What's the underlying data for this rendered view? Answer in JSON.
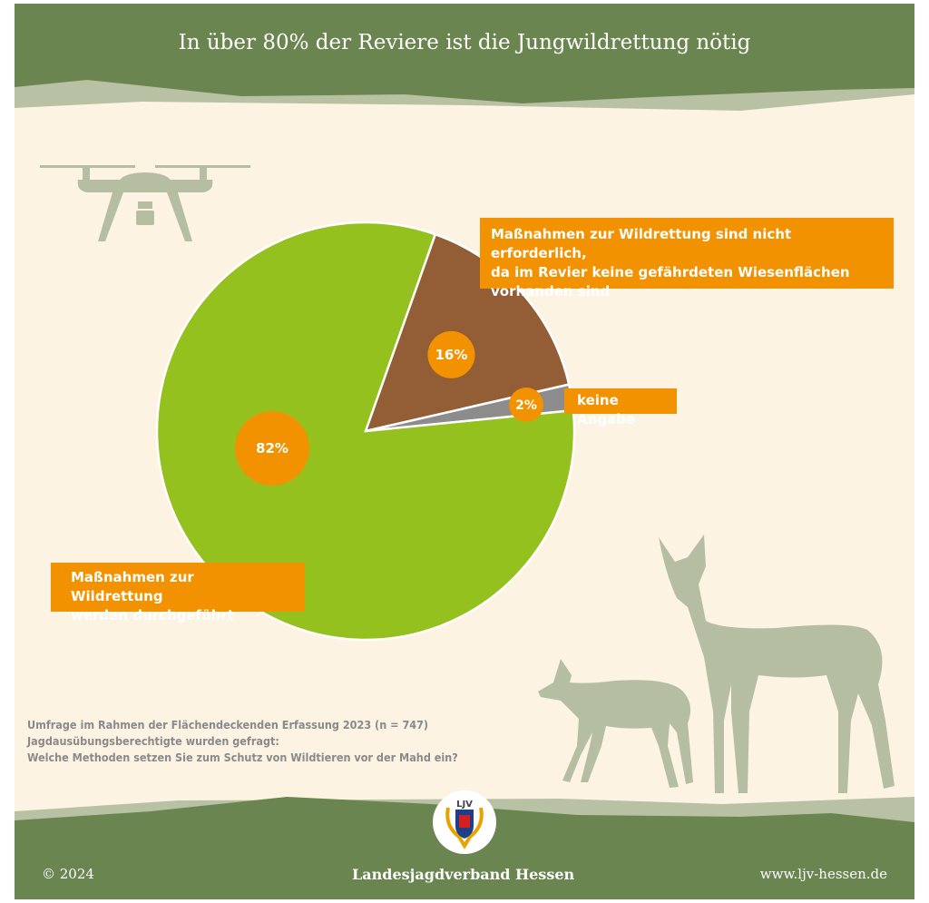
{
  "header": {
    "title": "In über 80% der Reviere ist die Jungwildrettung nötig"
  },
  "colors": {
    "green_band": "#6a8550",
    "light_band": "#b8c1a3",
    "background": "#fdf3e2",
    "label_box": "#f39200",
    "silhouette": "#b5bea3"
  },
  "chart_data": {
    "type": "pie",
    "title": "",
    "start_angle_deg": 19.5,
    "direction": "clockwise",
    "slices": [
      {
        "label": "Maßnahmen zur Wildrettung sind nicht erforderlich, da im Revier keine gefährdeten Wiesenflächen vorhanden sind",
        "value": 16,
        "value_label": "16%",
        "color": "#935d35"
      },
      {
        "label": "keine Angabe",
        "value": 2,
        "value_label": "2%",
        "color": "#8c8c8c"
      },
      {
        "label": "Maßnahmen zur Wildrettung werden durchgeführt",
        "value": 82,
        "value_label": "82%",
        "color": "#95c11f"
      }
    ]
  },
  "labels": {
    "not_required_lines": [
      "Maßnahmen zur Wildrettung sind nicht erforderlich,",
      "da im Revier keine gefährdeten Wiesenflächen",
      "vorhanden sind"
    ],
    "no_answer": "keine Angabe",
    "performed_lines": [
      "Maßnahmen zur Wildrettung",
      "werden durchgeführt"
    ]
  },
  "survey": {
    "lines": [
      "Umfrage im Rahmen der Flächendeckenden Erfassung 2023 (n = 747)",
      "Jagdausübungsberechtigte wurden gefragt:",
      "Welche Methoden setzen Sie zum Schutz von Wildtieren vor der Mahd ein?"
    ]
  },
  "footer": {
    "copyright": "© 2024",
    "organization": "Landesjagdverband Hessen",
    "website": "www.ljv-hessen.de",
    "logo_text": "LJV"
  },
  "icons": {
    "drone": "drone-icon",
    "deer": "deer-silhouette",
    "fawn": "fawn-silhouette",
    "logo": "ljv-logo"
  }
}
